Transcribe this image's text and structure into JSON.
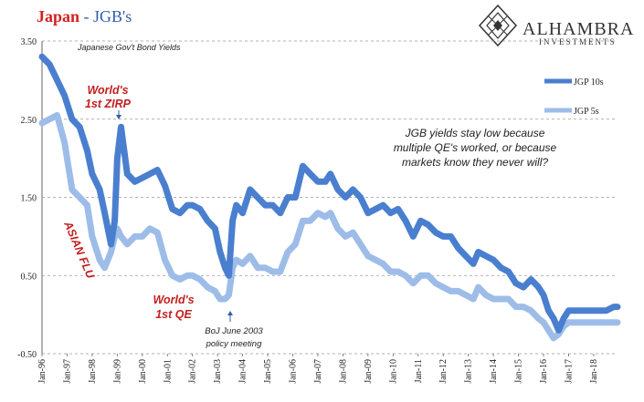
{
  "header": {
    "title_country": "Japan",
    "title_sep": " - ",
    "title_series": "JGB's",
    "subtitle": "Japanese Gov't Bond Yields"
  },
  "brand": {
    "name": "ALHAMBRA",
    "tagline": "INVESTMENTS"
  },
  "annotations": {
    "note_line1": "JGB yields stay low because",
    "note_line2": "multiple QE's worked, or because",
    "note_line3": "markets know they never will?",
    "zirp_line1": "World's",
    "zirp_line2": "1st ZIRP",
    "asian_flu": "ASIAN FLU",
    "qe_line1": "World's",
    "qe_line2": "1st QE",
    "boj_line1": "BoJ June 2003",
    "boj_line2": "policy meeting"
  },
  "chart_data": {
    "type": "line",
    "title": "Japan - JGB's",
    "subtitle": "Japanese Gov't Bond Yields",
    "ylim": [
      -0.5,
      3.5
    ],
    "y_ticks": [
      "3.50",
      "2.50",
      "1.50",
      "0.50",
      "-0.50"
    ],
    "y_tick_values": [
      3.5,
      2.5,
      1.5,
      0.5,
      -0.5
    ],
    "x_ticks": [
      "Jan-96",
      "Jan-97",
      "Jan-98",
      "Jan-99",
      "Jan-00",
      "Jan-01",
      "Jan-02",
      "Jan-03",
      "Jan-04",
      "Jan-05",
      "Jan-06",
      "Jan-07",
      "Jan-08",
      "Jan-09",
      "Jan-10",
      "Jan-11",
      "Jan-12",
      "Jan-13",
      "Jan-14",
      "Jan-15",
      "Jan-16",
      "Jan-17",
      "Jan-18"
    ],
    "x_tick_values": [
      1996,
      1997,
      1998,
      1999,
      2000,
      2001,
      2002,
      2003,
      2004,
      2005,
      2006,
      2007,
      2008,
      2009,
      2010,
      2011,
      2012,
      2013,
      2014,
      2015,
      2016,
      2017,
      2018
    ],
    "xlim": [
      1996,
      2018.95
    ],
    "grid": "horizontal dashed",
    "legend": "right",
    "series": [
      {
        "name": "JGP 10s",
        "color": "#4a7fcf",
        "x": [
          1996.0,
          1996.3,
          1996.6,
          1996.9,
          1997.2,
          1997.5,
          1997.8,
          1998.0,
          1998.3,
          1998.5,
          1998.75,
          1998.9,
          1999.0,
          1999.15,
          1999.4,
          1999.7,
          2000.0,
          2000.3,
          2000.6,
          2000.9,
          2001.2,
          2001.5,
          2001.8,
          2002.0,
          2002.3,
          2002.6,
          2002.9,
          2003.1,
          2003.3,
          2003.45,
          2003.6,
          2003.75,
          2004.0,
          2004.3,
          2004.6,
          2004.9,
          2005.2,
          2005.5,
          2005.8,
          2006.1,
          2006.4,
          2006.7,
          2007.0,
          2007.3,
          2007.5,
          2007.8,
          2008.1,
          2008.4,
          2008.7,
          2009.0,
          2009.3,
          2009.6,
          2009.9,
          2010.2,
          2010.5,
          2010.8,
          2011.1,
          2011.4,
          2011.7,
          2012.0,
          2012.3,
          2012.6,
          2012.9,
          2013.2,
          2013.4,
          2013.7,
          2014.0,
          2014.3,
          2014.6,
          2014.9,
          2015.2,
          2015.5,
          2015.8,
          2016.0,
          2016.2,
          2016.4,
          2016.6,
          2016.8,
          2017.0,
          2017.3,
          2017.6,
          2017.9,
          2018.2,
          2018.5,
          2018.8,
          2018.95
        ],
        "values": [
          3.3,
          3.2,
          3.0,
          2.8,
          2.5,
          2.4,
          2.1,
          1.8,
          1.6,
          1.3,
          0.9,
          1.2,
          2.0,
          2.4,
          1.8,
          1.7,
          1.75,
          1.8,
          1.85,
          1.65,
          1.35,
          1.3,
          1.4,
          1.4,
          1.35,
          1.2,
          1.1,
          0.8,
          0.6,
          0.5,
          1.2,
          1.4,
          1.3,
          1.6,
          1.5,
          1.4,
          1.4,
          1.3,
          1.5,
          1.5,
          1.9,
          1.8,
          1.7,
          1.7,
          1.8,
          1.6,
          1.5,
          1.6,
          1.5,
          1.3,
          1.35,
          1.4,
          1.3,
          1.35,
          1.2,
          1.0,
          1.2,
          1.15,
          1.05,
          1.0,
          1.0,
          0.85,
          0.75,
          0.65,
          0.8,
          0.75,
          0.7,
          0.6,
          0.55,
          0.4,
          0.35,
          0.45,
          0.35,
          0.25,
          0.05,
          -0.05,
          -0.2,
          -0.05,
          0.05,
          0.05,
          0.05,
          0.05,
          0.05,
          0.05,
          0.1,
          0.1
        ]
      },
      {
        "name": "JGP 5s",
        "color": "#9dbde8",
        "x": [
          1996.0,
          1996.3,
          1996.6,
          1996.9,
          1997.2,
          1997.5,
          1997.8,
          1998.0,
          1998.3,
          1998.5,
          1998.75,
          1998.9,
          1999.0,
          1999.15,
          1999.4,
          1999.7,
          2000.0,
          2000.3,
          2000.6,
          2000.9,
          2001.2,
          2001.5,
          2001.8,
          2002.0,
          2002.3,
          2002.6,
          2002.9,
          2003.1,
          2003.3,
          2003.45,
          2003.6,
          2003.75,
          2004.0,
          2004.3,
          2004.6,
          2004.9,
          2005.2,
          2005.5,
          2005.8,
          2006.1,
          2006.4,
          2006.7,
          2007.0,
          2007.3,
          2007.5,
          2007.8,
          2008.1,
          2008.4,
          2008.7,
          2009.0,
          2009.3,
          2009.6,
          2009.9,
          2010.2,
          2010.5,
          2010.8,
          2011.1,
          2011.4,
          2011.7,
          2012.0,
          2012.3,
          2012.6,
          2012.9,
          2013.2,
          2013.4,
          2013.7,
          2014.0,
          2014.3,
          2014.6,
          2014.9,
          2015.2,
          2015.5,
          2015.8,
          2016.0,
          2016.2,
          2016.4,
          2016.6,
          2016.8,
          2017.0,
          2017.3,
          2017.6,
          2017.9,
          2018.2,
          2018.5,
          2018.8,
          2018.95
        ],
        "values": [
          2.45,
          2.5,
          2.55,
          2.2,
          1.6,
          1.5,
          1.4,
          1.0,
          0.7,
          0.6,
          0.8,
          1.0,
          1.1,
          1.0,
          0.9,
          1.0,
          1.0,
          1.1,
          1.05,
          0.7,
          0.5,
          0.45,
          0.5,
          0.5,
          0.45,
          0.35,
          0.3,
          0.2,
          0.2,
          0.25,
          0.6,
          0.7,
          0.65,
          0.75,
          0.6,
          0.6,
          0.55,
          0.55,
          0.8,
          0.9,
          1.2,
          1.2,
          1.3,
          1.25,
          1.3,
          1.1,
          1.0,
          1.05,
          0.9,
          0.75,
          0.7,
          0.65,
          0.55,
          0.55,
          0.5,
          0.4,
          0.5,
          0.5,
          0.4,
          0.35,
          0.3,
          0.3,
          0.25,
          0.2,
          0.35,
          0.25,
          0.2,
          0.2,
          0.2,
          0.1,
          0.1,
          0.05,
          -0.05,
          -0.1,
          -0.2,
          -0.3,
          -0.25,
          -0.15,
          -0.1,
          -0.1,
          -0.1,
          -0.1,
          -0.1,
          -0.1,
          -0.1,
          -0.1
        ]
      }
    ]
  }
}
